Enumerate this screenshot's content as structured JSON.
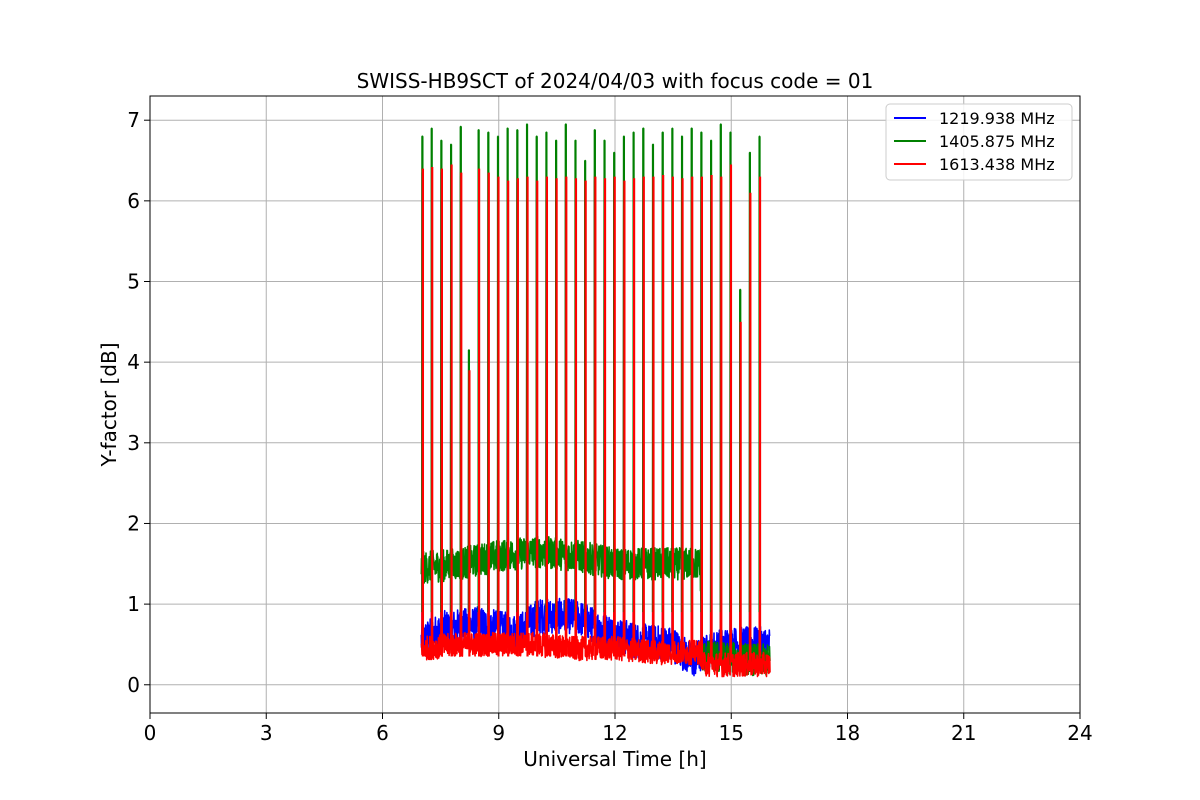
{
  "chart_data": {
    "type": "line",
    "title": "SWISS-HB9SCT of 2024/04/03 with focus code = 01",
    "xlabel": "Universal Time [h]",
    "ylabel": "Y-factor [dB]",
    "xlim": [
      0,
      24
    ],
    "ylim": [
      -0.35,
      7.3
    ],
    "xticks": [
      0,
      3,
      6,
      9,
      12,
      15,
      18,
      21,
      24
    ],
    "yticks": [
      0,
      1,
      2,
      3,
      4,
      5,
      6,
      7
    ],
    "grid": true,
    "legend_position": "top-right",
    "series": [
      {
        "name": "1219.938 MHz",
        "color": "#0000ff",
        "baseline": [
          [
            7.0,
            0.55
          ],
          [
            7.6,
            0.7
          ],
          [
            8.5,
            0.75
          ],
          [
            9.5,
            0.65
          ],
          [
            10.0,
            0.85
          ],
          [
            11.0,
            0.85
          ],
          [
            11.6,
            0.7
          ],
          [
            12.5,
            0.55
          ],
          [
            13.5,
            0.5
          ],
          [
            14.0,
            0.3
          ],
          [
            14.5,
            0.45
          ],
          [
            15.0,
            0.5
          ],
          [
            16.0,
            0.5
          ]
        ],
        "noise": 0.22
      },
      {
        "name": "1405.875 MHz",
        "color": "#008000",
        "baseline": [
          [
            7.0,
            1.45
          ],
          [
            8.0,
            1.5
          ],
          [
            9.0,
            1.6
          ],
          [
            10.0,
            1.65
          ],
          [
            11.0,
            1.6
          ],
          [
            12.0,
            1.5
          ],
          [
            13.0,
            1.5
          ],
          [
            14.2,
            1.5
          ],
          [
            14.25,
            0.35
          ],
          [
            16.0,
            0.3
          ]
        ],
        "noise": 0.2
      },
      {
        "name": "1613.438 MHz",
        "color": "#ff0000",
        "baseline": [
          [
            7.0,
            0.45
          ],
          [
            8.0,
            0.5
          ],
          [
            9.0,
            0.5
          ],
          [
            10.0,
            0.5
          ],
          [
            11.0,
            0.45
          ],
          [
            12.0,
            0.45
          ],
          [
            13.0,
            0.4
          ],
          [
            14.2,
            0.4
          ],
          [
            14.3,
            0.25
          ],
          [
            16.0,
            0.25
          ]
        ],
        "noise": 0.15
      }
    ],
    "spikes": {
      "times": [
        7.03,
        7.27,
        7.52,
        7.77,
        8.02,
        8.48,
        8.73,
        8.98,
        9.23,
        9.48,
        9.73,
        9.98,
        10.23,
        10.48,
        10.73,
        10.98,
        11.23,
        11.48,
        11.73,
        11.98,
        12.23,
        12.48,
        12.73,
        12.98,
        13.23,
        13.48,
        13.73,
        13.98,
        14.23,
        14.48,
        14.73,
        14.98,
        15.23,
        15.48,
        15.73
      ],
      "green_peaks": [
        6.8,
        6.9,
        6.75,
        6.7,
        6.92,
        6.88,
        6.85,
        6.8,
        6.9,
        6.88,
        6.95,
        6.8,
        6.85,
        6.75,
        6.95,
        6.75,
        6.5,
        6.88,
        6.75,
        6.6,
        6.8,
        6.85,
        6.9,
        6.7,
        6.85,
        6.9,
        6.8,
        6.9,
        6.85,
        6.75,
        6.95,
        6.85,
        4.9,
        6.6,
        6.8
      ],
      "red_peaks": [
        6.4,
        6.42,
        6.4,
        6.45,
        6.35,
        6.4,
        6.35,
        6.3,
        6.25,
        6.28,
        6.3,
        6.25,
        6.3,
        6.28,
        6.3,
        6.28,
        6.25,
        6.3,
        6.28,
        6.3,
        6.25,
        6.28,
        6.3,
        6.3,
        6.32,
        6.3,
        6.28,
        6.3,
        6.3,
        6.32,
        6.3,
        6.45,
        4.5,
        6.1,
        6.3
      ],
      "extra": [
        {
          "time": 8.23,
          "green": 4.15,
          "red": 3.9
        }
      ]
    }
  }
}
